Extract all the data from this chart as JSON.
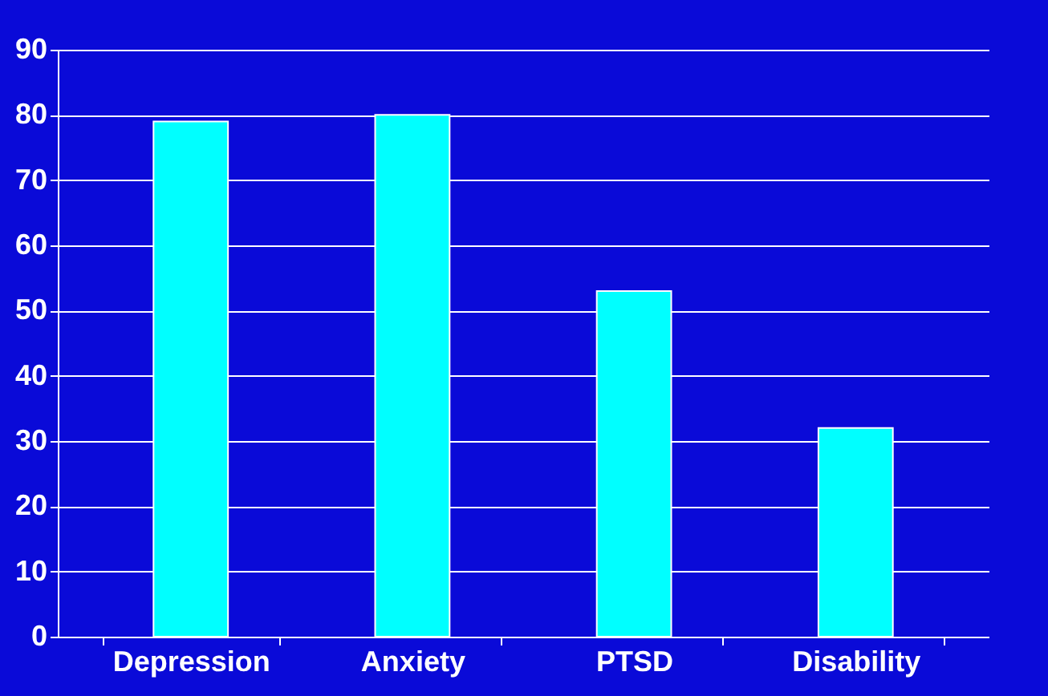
{
  "chart_data": {
    "type": "bar",
    "categories": [
      "Depression",
      "Anxiety",
      "PTSD",
      "Disability"
    ],
    "series": [
      {
        "color": "#00ffff",
        "values": [
          79,
          80,
          53,
          32
        ]
      }
    ],
    "ylim": [
      0,
      90
    ],
    "yticks": [
      0,
      10,
      20,
      30,
      40,
      50,
      60,
      70,
      80,
      90
    ],
    "grid": "y"
  }
}
